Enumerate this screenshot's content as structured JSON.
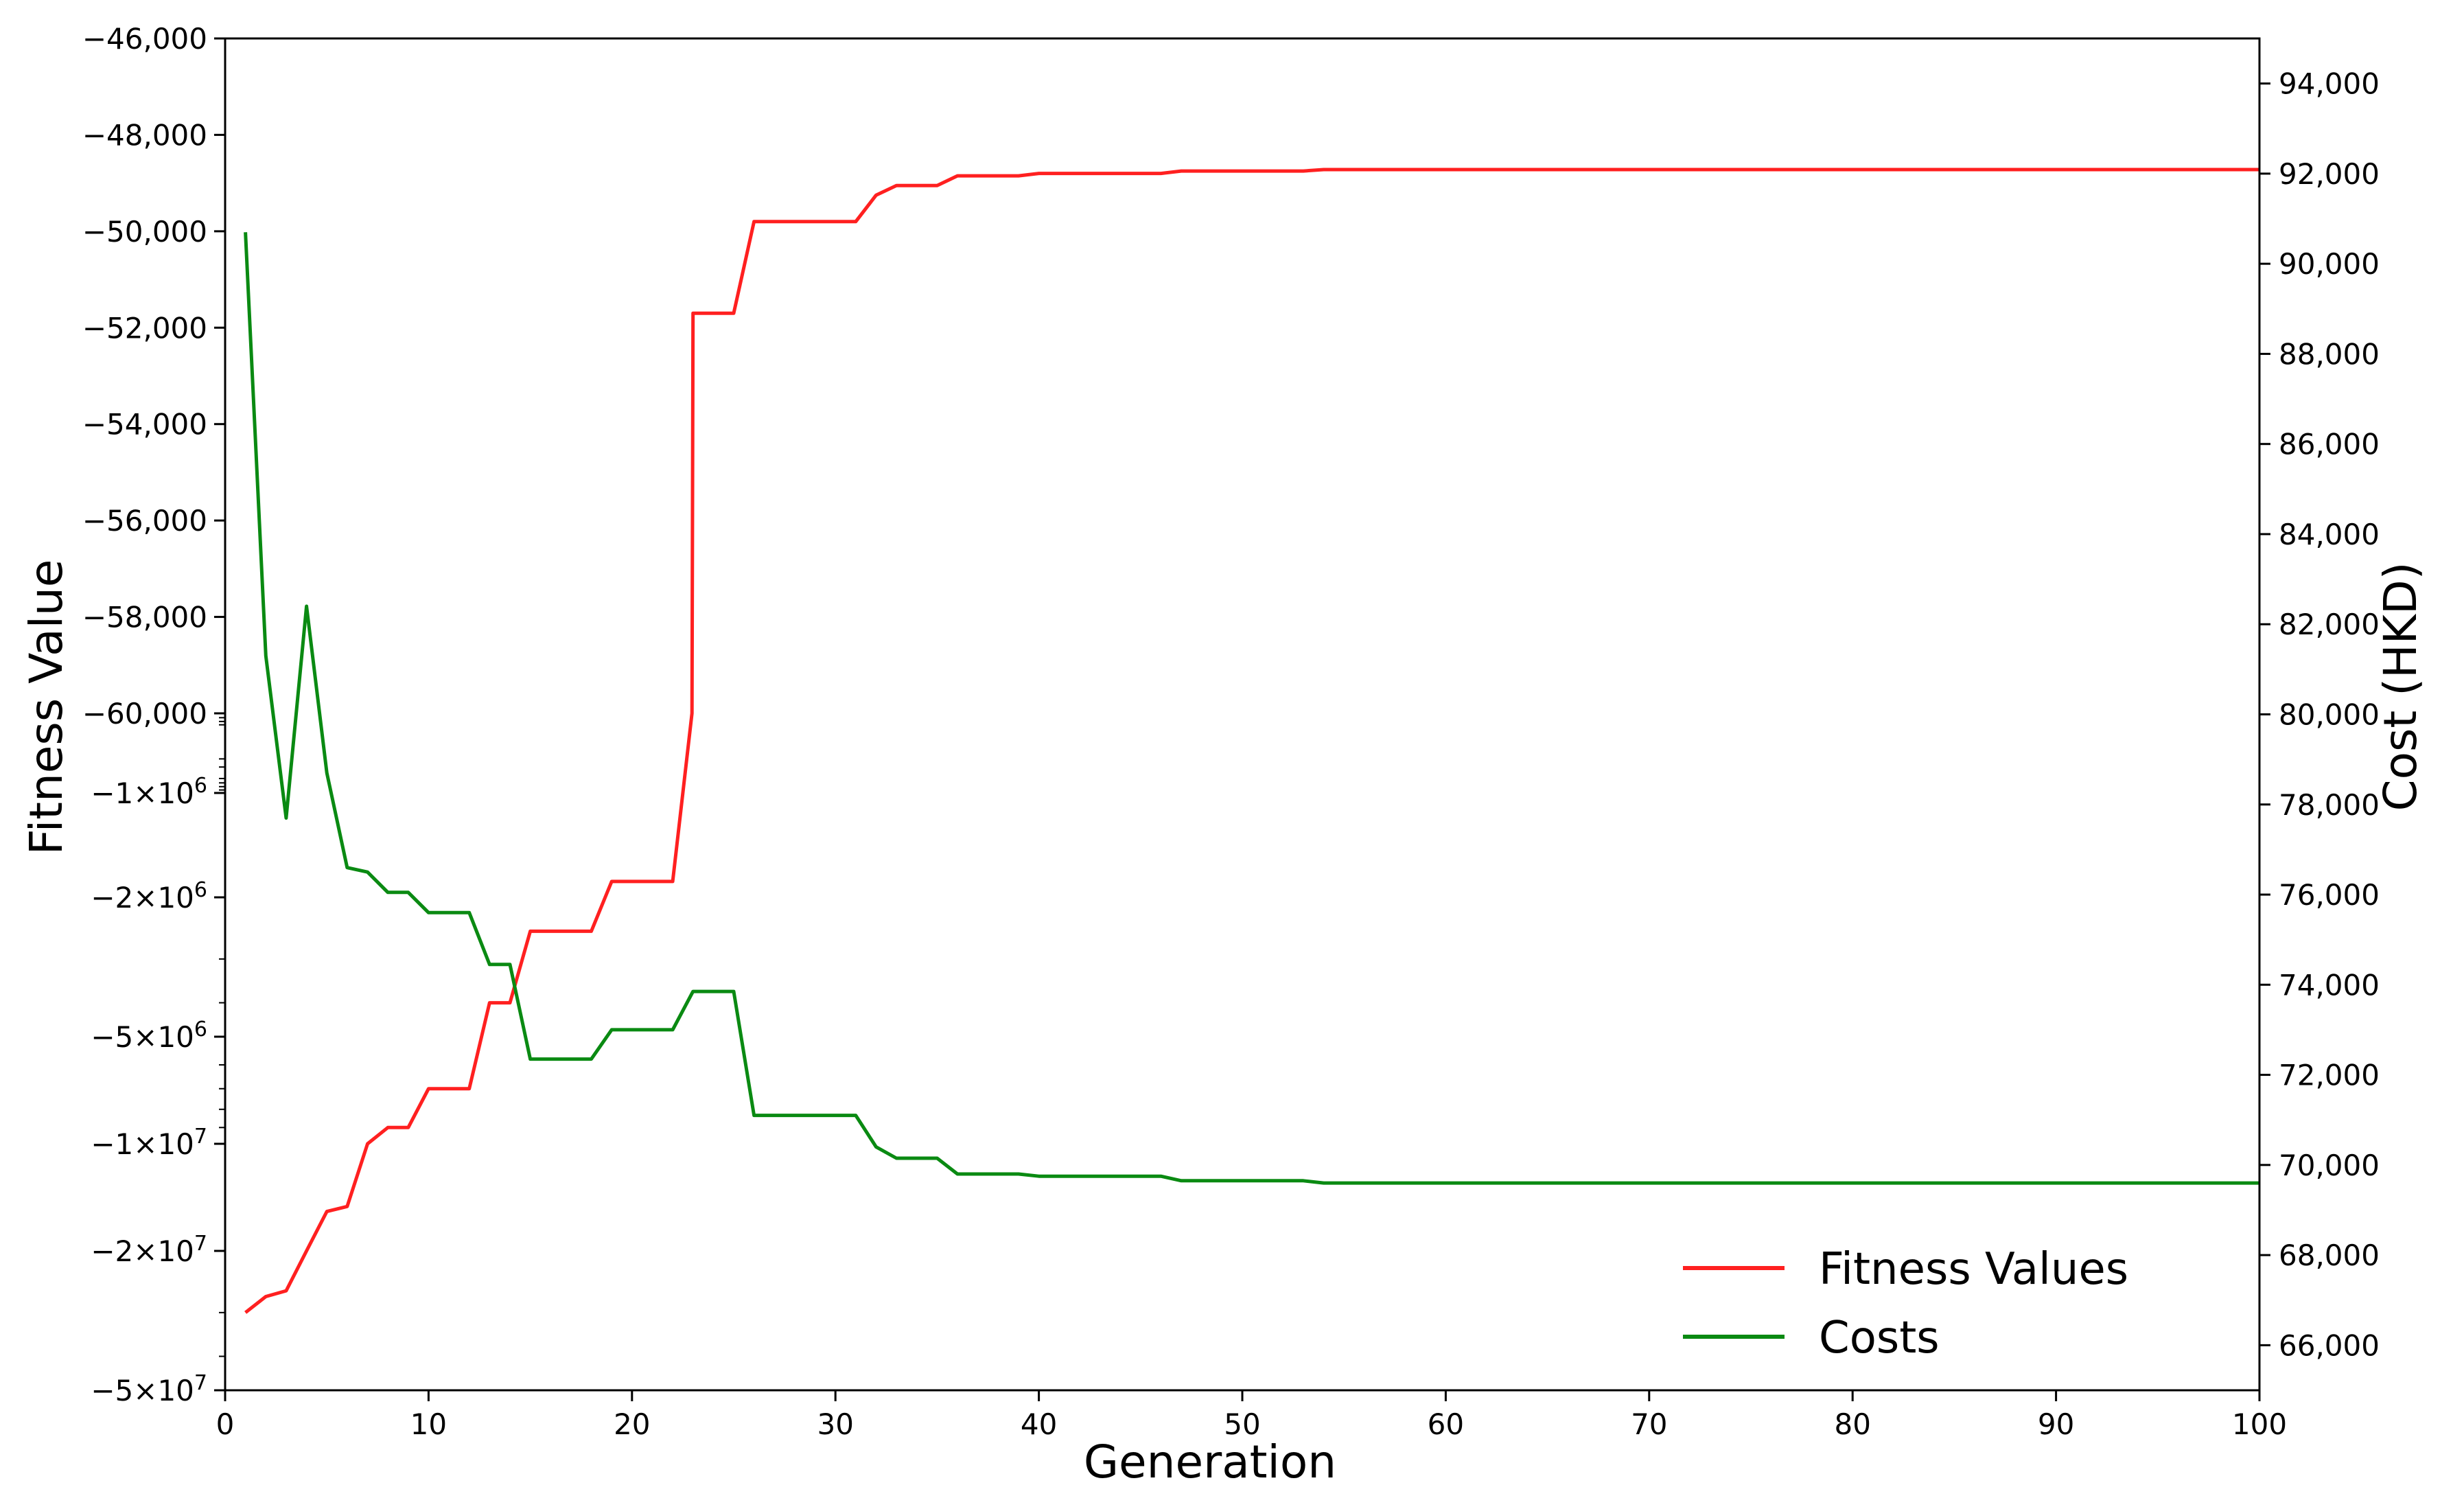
{
  "chart_data": {
    "type": "line",
    "xlabel": "Generation",
    "ylabel_left": "Fitness Value",
    "ylabel_right": "Cost (HKD)",
    "xlim": [
      0,
      100
    ],
    "xticks": [
      0,
      10,
      20,
      30,
      40,
      50,
      60,
      70,
      80,
      90,
      100
    ],
    "left_axis_scale": "symlog (linear from -46,000 to -60,000; logarithmic below)",
    "left_ticks": [
      {
        "value": -46000,
        "label": "−46,000"
      },
      {
        "value": -48000,
        "label": "−48,000"
      },
      {
        "value": -50000,
        "label": "−50,000"
      },
      {
        "value": -52000,
        "label": "−52,000"
      },
      {
        "value": -54000,
        "label": "−54,000"
      },
      {
        "value": -56000,
        "label": "−56,000"
      },
      {
        "value": -58000,
        "label": "−58,000"
      },
      {
        "value": -60000,
        "label": "−60,000"
      },
      {
        "value": -1000000,
        "label": "−1×10",
        "exp": "6"
      },
      {
        "value": -2000000,
        "label": "−2×10",
        "exp": "6"
      },
      {
        "value": -5000000,
        "label": "−5×10",
        "exp": "6"
      },
      {
        "value": -10000000,
        "label": "−1×10",
        "exp": "7"
      },
      {
        "value": -20000000,
        "label": "−2×10",
        "exp": "7"
      },
      {
        "value": -50000000,
        "label": "−5×10",
        "exp": "7"
      }
    ],
    "right_ylim": [
      65000,
      95000
    ],
    "right_ticks": [
      {
        "value": 66000,
        "label": "66,000"
      },
      {
        "value": 68000,
        "label": "68,000"
      },
      {
        "value": 70000,
        "label": "70,000"
      },
      {
        "value": 72000,
        "label": "72,000"
      },
      {
        "value": 74000,
        "label": "74,000"
      },
      {
        "value": 76000,
        "label": "76,000"
      },
      {
        "value": 78000,
        "label": "78,000"
      },
      {
        "value": 80000,
        "label": "80,000"
      },
      {
        "value": 82000,
        "label": "82,000"
      },
      {
        "value": 84000,
        "label": "84,000"
      },
      {
        "value": 86000,
        "label": "86,000"
      },
      {
        "value": 88000,
        "label": "88,000"
      },
      {
        "value": 90000,
        "label": "90,000"
      },
      {
        "value": 92000,
        "label": "92,000"
      },
      {
        "value": 94000,
        "label": "94,000"
      }
    ],
    "legend_position": "bottom-right",
    "series": [
      {
        "name": "Fitness Values",
        "color": "#ff2020",
        "axis": "left",
        "points": [
          [
            1,
            -30000000
          ],
          [
            2,
            -27000000
          ],
          [
            3,
            -26000000
          ],
          [
            4,
            -20000000
          ],
          [
            5,
            -15500000
          ],
          [
            6,
            -15000000
          ],
          [
            7,
            -10000000
          ],
          [
            8,
            -9000000
          ],
          [
            9,
            -9000000
          ],
          [
            10,
            -7000000
          ],
          [
            11,
            -7000000
          ],
          [
            12,
            -7000000
          ],
          [
            13,
            -4000000
          ],
          [
            14,
            -4000000
          ],
          [
            15,
            -2500000
          ],
          [
            16,
            -2500000
          ],
          [
            17,
            -2500000
          ],
          [
            18,
            -2500000
          ],
          [
            19,
            -1800000
          ],
          [
            20,
            -1800000
          ],
          [
            21,
            -1800000
          ],
          [
            22,
            -1800000
          ],
          [
            22.95,
            -60000
          ],
          [
            23,
            -51700
          ],
          [
            24,
            -51700
          ],
          [
            25,
            -51700
          ],
          [
            26,
            -49800
          ],
          [
            27,
            -49800
          ],
          [
            28,
            -49800
          ],
          [
            29,
            -49800
          ],
          [
            30,
            -49800
          ],
          [
            31,
            -49800
          ],
          [
            32,
            -49250
          ],
          [
            33,
            -49050
          ],
          [
            34,
            -49050
          ],
          [
            35,
            -49050
          ],
          [
            36,
            -48850
          ],
          [
            37,
            -48850
          ],
          [
            38,
            -48850
          ],
          [
            39,
            -48850
          ],
          [
            40,
            -48800
          ],
          [
            45,
            -48800
          ],
          [
            46,
            -48800
          ],
          [
            47,
            -48750
          ],
          [
            53,
            -48750
          ],
          [
            54,
            -48720
          ],
          [
            100,
            -48720
          ]
        ]
      },
      {
        "name": "Costs",
        "color": "#0a8a12",
        "axis": "right",
        "points": [
          [
            1,
            90700
          ],
          [
            2,
            81300
          ],
          [
            3,
            77700
          ],
          [
            4,
            82400
          ],
          [
            5,
            78700
          ],
          [
            6,
            76600
          ],
          [
            7,
            76500
          ],
          [
            8,
            76050
          ],
          [
            9,
            76050
          ],
          [
            10,
            75600
          ],
          [
            11,
            75600
          ],
          [
            12,
            75600
          ],
          [
            13,
            74450
          ],
          [
            14,
            74450
          ],
          [
            15,
            72350
          ],
          [
            16,
            72350
          ],
          [
            17,
            72350
          ],
          [
            18,
            72350
          ],
          [
            19,
            73000
          ],
          [
            20,
            73000
          ],
          [
            21,
            73000
          ],
          [
            22,
            73000
          ],
          [
            23,
            73850
          ],
          [
            24,
            73850
          ],
          [
            25,
            73850
          ],
          [
            26,
            71100
          ],
          [
            27,
            71100
          ],
          [
            28,
            71100
          ],
          [
            29,
            71100
          ],
          [
            30,
            71100
          ],
          [
            31,
            71100
          ],
          [
            32,
            70400
          ],
          [
            33,
            70150
          ],
          [
            34,
            70150
          ],
          [
            35,
            70150
          ],
          [
            36,
            69800
          ],
          [
            37,
            69800
          ],
          [
            38,
            69800
          ],
          [
            39,
            69800
          ],
          [
            40,
            69750
          ],
          [
            45,
            69750
          ],
          [
            46,
            69750
          ],
          [
            47,
            69650
          ],
          [
            53,
            69650
          ],
          [
            54,
            69600
          ],
          [
            100,
            69600
          ]
        ]
      }
    ]
  }
}
